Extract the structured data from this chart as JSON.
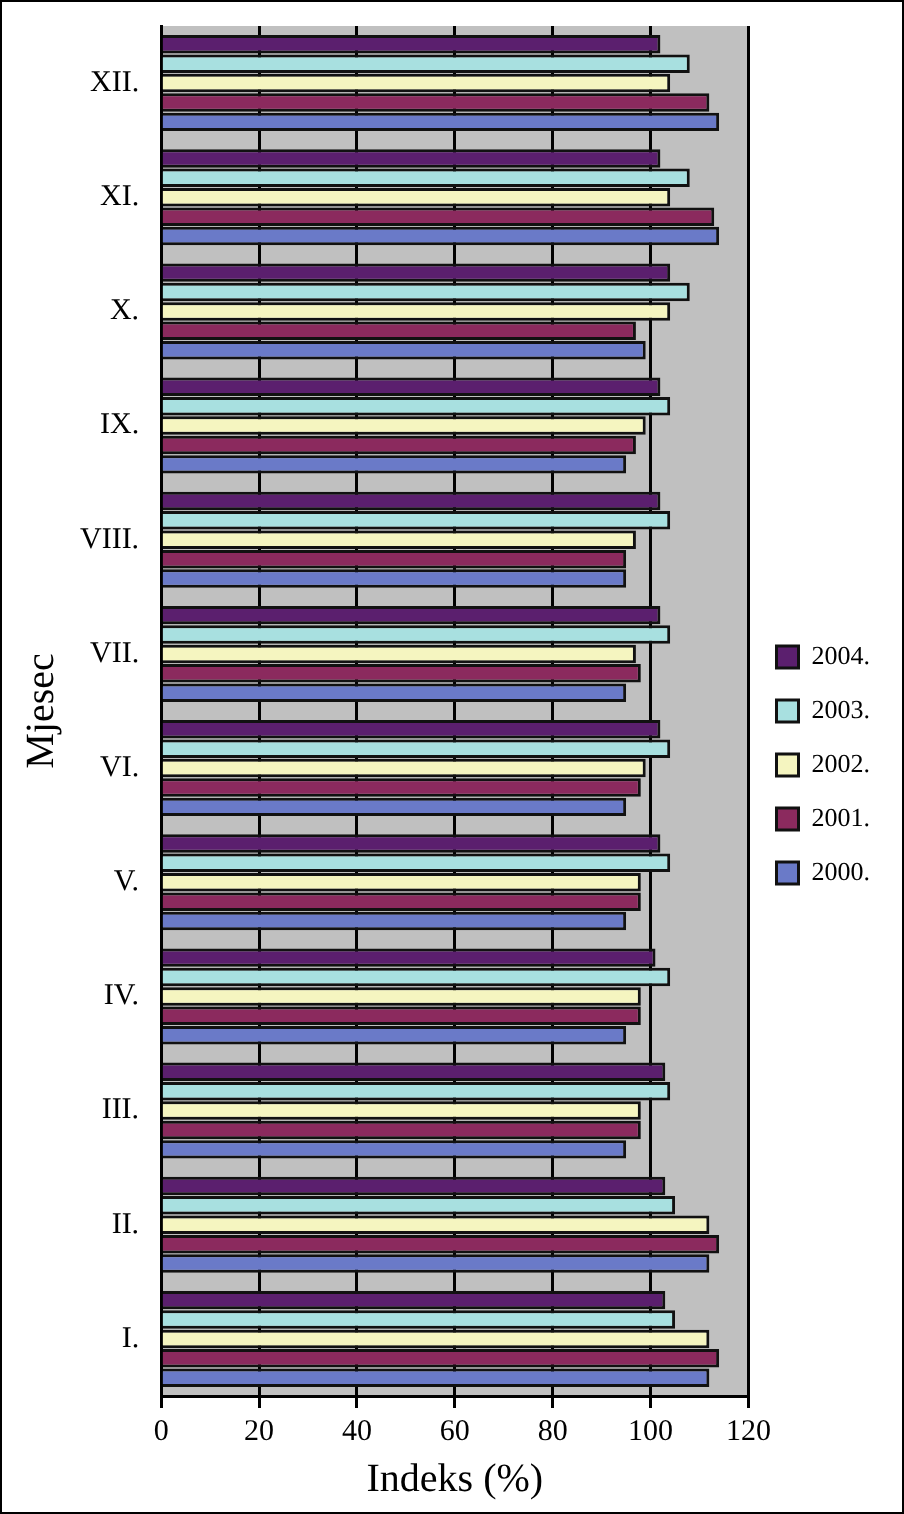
{
  "chart_data": {
    "type": "bar",
    "orientation": "horizontal",
    "xlabel": "Indeks (%)",
    "ylabel": "Mjesec",
    "categories": [
      "XII.",
      "XI.",
      "X.",
      "IX.",
      "VIII.",
      "VII.",
      "VI.",
      "V.",
      "IV.",
      "III.",
      "II.",
      "I."
    ],
    "series": [
      {
        "name": "2004.",
        "color": "#5b1f6e",
        "values": [
          102,
          102,
          104,
          102,
          102,
          102,
          102,
          102,
          101,
          103,
          103,
          103
        ]
      },
      {
        "name": "2003.",
        "color": "#a8e0e0",
        "values": [
          108,
          108,
          108,
          104,
          104,
          104,
          104,
          104,
          104,
          104,
          105,
          105
        ]
      },
      {
        "name": "2002.",
        "color": "#f5f5c0",
        "values": [
          104,
          104,
          104,
          99,
          97,
          97,
          99,
          98,
          98,
          98,
          112,
          112
        ]
      },
      {
        "name": "2001.",
        "color": "#8b2a5e",
        "values": [
          112,
          113,
          97,
          97,
          95,
          98,
          98,
          98,
          98,
          98,
          114,
          114
        ]
      },
      {
        "name": "2000.",
        "color": "#6a7ac8",
        "values": [
          114,
          114,
          99,
          95,
          95,
          95,
          95,
          95,
          95,
          95,
          112,
          112
        ]
      }
    ],
    "xlim": [
      0,
      120
    ],
    "xticks": [
      0,
      20,
      40,
      60,
      80,
      100,
      120
    ],
    "grid": "x",
    "legend": "right"
  }
}
